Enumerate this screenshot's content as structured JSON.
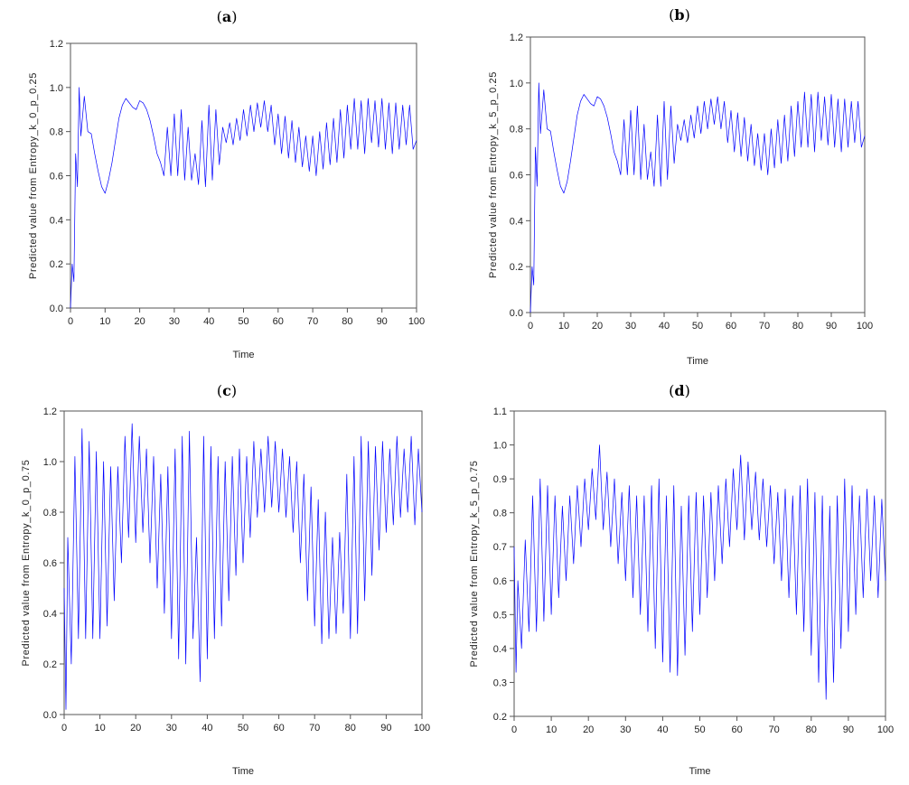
{
  "figure": {
    "line_color": "#0000ff",
    "frame_color": "#555555"
  },
  "chart_data": [
    {
      "panel": "(a)",
      "panel_letter": "a",
      "type": "line",
      "xlabel": "Time",
      "ylabel": "Predicted value from Entropy_k_0_p_0.25",
      "xlim": [
        0,
        100
      ],
      "ylim": [
        0.0,
        1.2
      ],
      "xticks": [
        0,
        10,
        20,
        30,
        40,
        50,
        60,
        70,
        80,
        90,
        100
      ],
      "xtick_labels": [
        "0",
        "10",
        "20",
        "30",
        "40",
        "50",
        "60",
        "70",
        "80",
        "90",
        "100"
      ],
      "yticks": [
        0.0,
        0.2,
        0.4,
        0.6,
        0.8,
        1.0,
        1.2
      ],
      "ytick_labels": [
        "0.0",
        "0.2",
        "0.4",
        "0.6",
        "0.8",
        "1.0",
        "1.2"
      ],
      "series": [
        {
          "name": "Predicted value",
          "x": [
            0,
            0.5,
            1,
            1.5,
            2,
            2.5,
            3,
            4,
            5,
            6,
            7,
            8,
            9,
            10,
            11,
            12,
            13,
            14,
            15,
            16,
            17,
            18,
            19,
            20,
            21,
            22,
            23,
            24,
            25,
            26,
            27,
            28,
            29,
            30,
            31,
            32,
            33,
            34,
            35,
            36,
            37,
            38,
            39,
            40,
            41,
            42,
            43,
            44,
            45,
            46,
            47,
            48,
            49,
            50,
            51,
            52,
            53,
            54,
            55,
            56,
            57,
            58,
            59,
            60,
            61,
            62,
            63,
            64,
            65,
            66,
            67,
            68,
            69,
            70,
            71,
            72,
            73,
            74,
            75,
            76,
            77,
            78,
            79,
            80,
            81,
            82,
            83,
            84,
            85,
            86,
            87,
            88,
            89,
            90,
            91,
            92,
            93,
            94,
            95,
            96,
            97,
            98,
            99,
            100
          ],
          "values": [
            0.0,
            0.2,
            0.12,
            0.7,
            0.55,
            1.0,
            0.78,
            0.96,
            0.8,
            0.79,
            0.7,
            0.62,
            0.55,
            0.52,
            0.58,
            0.66,
            0.76,
            0.86,
            0.92,
            0.95,
            0.93,
            0.91,
            0.9,
            0.94,
            0.93,
            0.9,
            0.85,
            0.78,
            0.7,
            0.66,
            0.6,
            0.82,
            0.6,
            0.88,
            0.6,
            0.9,
            0.58,
            0.82,
            0.58,
            0.7,
            0.56,
            0.85,
            0.55,
            0.92,
            0.58,
            0.9,
            0.65,
            0.82,
            0.75,
            0.84,
            0.74,
            0.86,
            0.76,
            0.9,
            0.78,
            0.92,
            0.8,
            0.93,
            0.82,
            0.94,
            0.8,
            0.92,
            0.74,
            0.88,
            0.7,
            0.87,
            0.68,
            0.85,
            0.66,
            0.82,
            0.64,
            0.78,
            0.62,
            0.78,
            0.6,
            0.8,
            0.63,
            0.84,
            0.65,
            0.86,
            0.66,
            0.9,
            0.68,
            0.92,
            0.72,
            0.95,
            0.72,
            0.94,
            0.7,
            0.95,
            0.75,
            0.94,
            0.73,
            0.95,
            0.72,
            0.93,
            0.7,
            0.93,
            0.72,
            0.92,
            0.74,
            0.92,
            0.72,
            0.76
          ]
        }
      ]
    },
    {
      "panel": "(b)",
      "panel_letter": "b",
      "type": "line",
      "xlabel": "Time",
      "ylabel": "Predicted value from Entropy_k_5_p_0.25",
      "xlim": [
        0,
        100
      ],
      "ylim": [
        0.0,
        1.2
      ],
      "xticks": [
        0,
        10,
        20,
        30,
        40,
        50,
        60,
        70,
        80,
        90,
        100
      ],
      "xtick_labels": [
        "0",
        "10",
        "20",
        "30",
        "40",
        "50",
        "60",
        "70",
        "80",
        "90",
        "100"
      ],
      "yticks": [
        0.0,
        0.2,
        0.4,
        0.6,
        0.8,
        1.0,
        1.2
      ],
      "ytick_labels": [
        "0.0",
        "0.2",
        "0.4",
        "0.6",
        "0.8",
        "1.0",
        "1.2"
      ],
      "series": [
        {
          "name": "Predicted value",
          "x": [
            0,
            0.5,
            1,
            1.5,
            2,
            2.5,
            3,
            4,
            5,
            6,
            7,
            8,
            9,
            10,
            11,
            12,
            13,
            14,
            15,
            16,
            17,
            18,
            19,
            20,
            21,
            22,
            23,
            24,
            25,
            26,
            27,
            28,
            29,
            30,
            31,
            32,
            33,
            34,
            35,
            36,
            37,
            38,
            39,
            40,
            41,
            42,
            43,
            44,
            45,
            46,
            47,
            48,
            49,
            50,
            51,
            52,
            53,
            54,
            55,
            56,
            57,
            58,
            59,
            60,
            61,
            62,
            63,
            64,
            65,
            66,
            67,
            68,
            69,
            70,
            71,
            72,
            73,
            74,
            75,
            76,
            77,
            78,
            79,
            80,
            81,
            82,
            83,
            84,
            85,
            86,
            87,
            88,
            89,
            90,
            91,
            92,
            93,
            94,
            95,
            96,
            97,
            98,
            99,
            100
          ],
          "values": [
            0.0,
            0.2,
            0.12,
            0.72,
            0.55,
            1.0,
            0.78,
            0.97,
            0.8,
            0.79,
            0.7,
            0.62,
            0.55,
            0.52,
            0.57,
            0.66,
            0.76,
            0.86,
            0.92,
            0.95,
            0.93,
            0.91,
            0.9,
            0.94,
            0.93,
            0.9,
            0.85,
            0.78,
            0.7,
            0.66,
            0.6,
            0.84,
            0.6,
            0.88,
            0.6,
            0.9,
            0.58,
            0.82,
            0.58,
            0.7,
            0.55,
            0.86,
            0.55,
            0.92,
            0.58,
            0.9,
            0.65,
            0.82,
            0.75,
            0.84,
            0.74,
            0.86,
            0.76,
            0.9,
            0.78,
            0.92,
            0.8,
            0.93,
            0.82,
            0.94,
            0.8,
            0.92,
            0.74,
            0.88,
            0.7,
            0.87,
            0.68,
            0.85,
            0.66,
            0.82,
            0.64,
            0.78,
            0.62,
            0.78,
            0.6,
            0.8,
            0.63,
            0.84,
            0.65,
            0.86,
            0.66,
            0.9,
            0.68,
            0.92,
            0.72,
            0.96,
            0.72,
            0.95,
            0.7,
            0.96,
            0.75,
            0.94,
            0.73,
            0.95,
            0.72,
            0.93,
            0.7,
            0.93,
            0.72,
            0.92,
            0.74,
            0.92,
            0.72,
            0.77
          ]
        }
      ]
    },
    {
      "panel": "(c)",
      "panel_letter": "c",
      "type": "line",
      "xlabel": "Time",
      "ylabel": "Predicted value from Entropy_k_0_p_0.75",
      "xlim": [
        0,
        100
      ],
      "ylim": [
        0.0,
        1.2
      ],
      "xticks": [
        0,
        10,
        20,
        30,
        40,
        50,
        60,
        70,
        80,
        90,
        100
      ],
      "xtick_labels": [
        "0",
        "10",
        "20",
        "30",
        "40",
        "50",
        "60",
        "70",
        "80",
        "90",
        "100"
      ],
      "yticks": [
        0.0,
        0.2,
        0.4,
        0.6,
        0.8,
        1.0,
        1.2
      ],
      "ytick_labels": [
        "0.0",
        "0.2",
        "0.4",
        "0.6",
        "0.8",
        "1.0",
        "1.2"
      ],
      "series": [
        {
          "name": "Predicted value",
          "x": [
            0,
            0.5,
            1,
            2,
            3,
            4,
            5,
            6,
            7,
            8,
            9,
            10,
            11,
            12,
            13,
            14,
            15,
            16,
            17,
            18,
            19,
            20,
            21,
            22,
            23,
            24,
            25,
            26,
            27,
            28,
            29,
            30,
            31,
            32,
            33,
            34,
            35,
            36,
            37,
            38,
            39,
            40,
            41,
            42,
            43,
            44,
            45,
            46,
            47,
            48,
            49,
            50,
            51,
            52,
            53,
            54,
            55,
            56,
            57,
            58,
            59,
            60,
            61,
            62,
            63,
            64,
            65,
            66,
            67,
            68,
            69,
            70,
            71,
            72,
            73,
            74,
            75,
            76,
            77,
            78,
            79,
            80,
            81,
            82,
            83,
            84,
            85,
            86,
            87,
            88,
            89,
            90,
            91,
            92,
            93,
            94,
            95,
            96,
            97,
            98,
            99,
            100
          ],
          "values": [
            0.5,
            0.02,
            0.7,
            0.2,
            1.02,
            0.3,
            1.13,
            0.3,
            1.08,
            0.3,
            1.04,
            0.3,
            1.0,
            0.35,
            0.98,
            0.45,
            0.98,
            0.6,
            1.1,
            0.7,
            1.15,
            0.68,
            1.1,
            0.72,
            1.05,
            0.6,
            1.02,
            0.5,
            0.95,
            0.4,
            0.98,
            0.3,
            1.05,
            0.22,
            1.1,
            0.2,
            1.12,
            0.3,
            0.7,
            0.13,
            1.1,
            0.22,
            1.06,
            0.3,
            1.02,
            0.35,
            1.0,
            0.45,
            1.02,
            0.55,
            1.05,
            0.6,
            1.02,
            0.7,
            1.08,
            0.78,
            1.05,
            0.8,
            1.1,
            0.82,
            1.08,
            0.8,
            1.05,
            0.78,
            1.02,
            0.72,
            1.0,
            0.6,
            0.95,
            0.45,
            0.9,
            0.35,
            0.85,
            0.28,
            0.8,
            0.3,
            0.7,
            0.32,
            0.72,
            0.4,
            0.95,
            0.3,
            1.02,
            0.32,
            1.1,
            0.45,
            1.08,
            0.55,
            1.06,
            0.65,
            1.08,
            0.72,
            1.05,
            0.75,
            1.1,
            0.78,
            1.05,
            0.8,
            1.1,
            0.75,
            1.05,
            0.8
          ]
        }
      ]
    },
    {
      "panel": "(d)",
      "panel_letter": "d",
      "type": "line",
      "xlabel": "Time",
      "ylabel": "Predicted value from Entropy_k_5_p_0.75",
      "xlim": [
        0,
        100
      ],
      "ylim": [
        0.2,
        1.1
      ],
      "xticks": [
        0,
        10,
        20,
        30,
        40,
        50,
        60,
        70,
        80,
        90,
        100
      ],
      "xtick_labels": [
        "0",
        "10",
        "20",
        "30",
        "40",
        "50",
        "60",
        "70",
        "80",
        "90",
        "100"
      ],
      "yticks": [
        0.2,
        0.3,
        0.4,
        0.5,
        0.6,
        0.7,
        0.8,
        0.9,
        1.0,
        1.1
      ],
      "ytick_labels": [
        "0.2",
        "0.3",
        "0.4",
        "0.5",
        "0.6",
        "0.7",
        "0.8",
        "0.9",
        "1.0",
        "1.1"
      ],
      "series": [
        {
          "name": "Predicted value",
          "x": [
            0,
            0.5,
            1,
            2,
            3,
            4,
            5,
            6,
            7,
            8,
            9,
            10,
            11,
            12,
            13,
            14,
            15,
            16,
            17,
            18,
            19,
            20,
            21,
            22,
            23,
            24,
            25,
            26,
            27,
            28,
            29,
            30,
            31,
            32,
            33,
            34,
            35,
            36,
            37,
            38,
            39,
            40,
            41,
            42,
            43,
            44,
            45,
            46,
            47,
            48,
            49,
            50,
            51,
            52,
            53,
            54,
            55,
            56,
            57,
            58,
            59,
            60,
            61,
            62,
            63,
            64,
            65,
            66,
            67,
            68,
            69,
            70,
            71,
            72,
            73,
            74,
            75,
            76,
            77,
            78,
            79,
            80,
            81,
            82,
            83,
            84,
            85,
            86,
            87,
            88,
            89,
            90,
            91,
            92,
            93,
            94,
            95,
            96,
            97,
            98,
            99,
            100
          ],
          "values": [
            0.7,
            0.33,
            0.6,
            0.4,
            0.72,
            0.45,
            0.85,
            0.45,
            0.9,
            0.48,
            0.88,
            0.5,
            0.85,
            0.55,
            0.82,
            0.6,
            0.85,
            0.65,
            0.88,
            0.7,
            0.9,
            0.75,
            0.93,
            0.78,
            1.0,
            0.75,
            0.92,
            0.7,
            0.9,
            0.65,
            0.86,
            0.6,
            0.88,
            0.55,
            0.85,
            0.5,
            0.85,
            0.45,
            0.88,
            0.4,
            0.9,
            0.36,
            0.85,
            0.33,
            0.88,
            0.32,
            0.82,
            0.38,
            0.85,
            0.45,
            0.86,
            0.5,
            0.85,
            0.55,
            0.86,
            0.6,
            0.88,
            0.65,
            0.9,
            0.7,
            0.93,
            0.75,
            0.97,
            0.72,
            0.95,
            0.75,
            0.92,
            0.72,
            0.9,
            0.7,
            0.88,
            0.65,
            0.86,
            0.6,
            0.87,
            0.55,
            0.85,
            0.5,
            0.88,
            0.45,
            0.9,
            0.38,
            0.86,
            0.3,
            0.85,
            0.25,
            0.82,
            0.3,
            0.85,
            0.4,
            0.9,
            0.45,
            0.88,
            0.5,
            0.85,
            0.55,
            0.87,
            0.6,
            0.85,
            0.55,
            0.84,
            0.6
          ]
        }
      ]
    }
  ]
}
